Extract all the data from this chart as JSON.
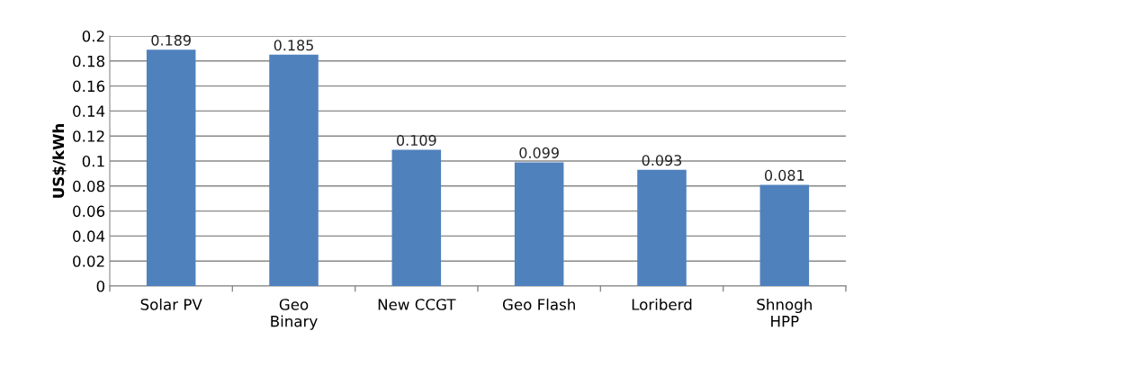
{
  "chart_data": {
    "type": "bar",
    "ylabel": "US$/kWh",
    "categories": [
      "Solar PV",
      "Geo\nBinary",
      "New CCGT",
      "Geo Flash",
      "Loriberd",
      "Shnogh\nHPP"
    ],
    "values": [
      0.189,
      0.185,
      0.109,
      0.099,
      0.093,
      0.081
    ],
    "color": "#4f81bd",
    "data_labels": true,
    "ylim": [
      0,
      0.2
    ],
    "yticks": [
      0,
      {
        "value": 0.02,
        "label": "0.02"
      },
      {
        "value": 0.04,
        "label": "0.04"
      },
      {
        "value": 0.06,
        "label": "0.06"
      },
      {
        "value": 0.08,
        "label": "0.08"
      },
      {
        "value": 0.1,
        "label": "0.1"
      },
      {
        "value": 0.12,
        "label": "0.12"
      },
      {
        "value": 0.14,
        "label": "0.14"
      },
      {
        "value": 0.16,
        "label": "0.16"
      },
      {
        "value": 0.18,
        "label": "0.18"
      },
      {
        "value": 0.2,
        "label": "0.2"
      }
    ],
    "grid": "y",
    "legend": false
  }
}
